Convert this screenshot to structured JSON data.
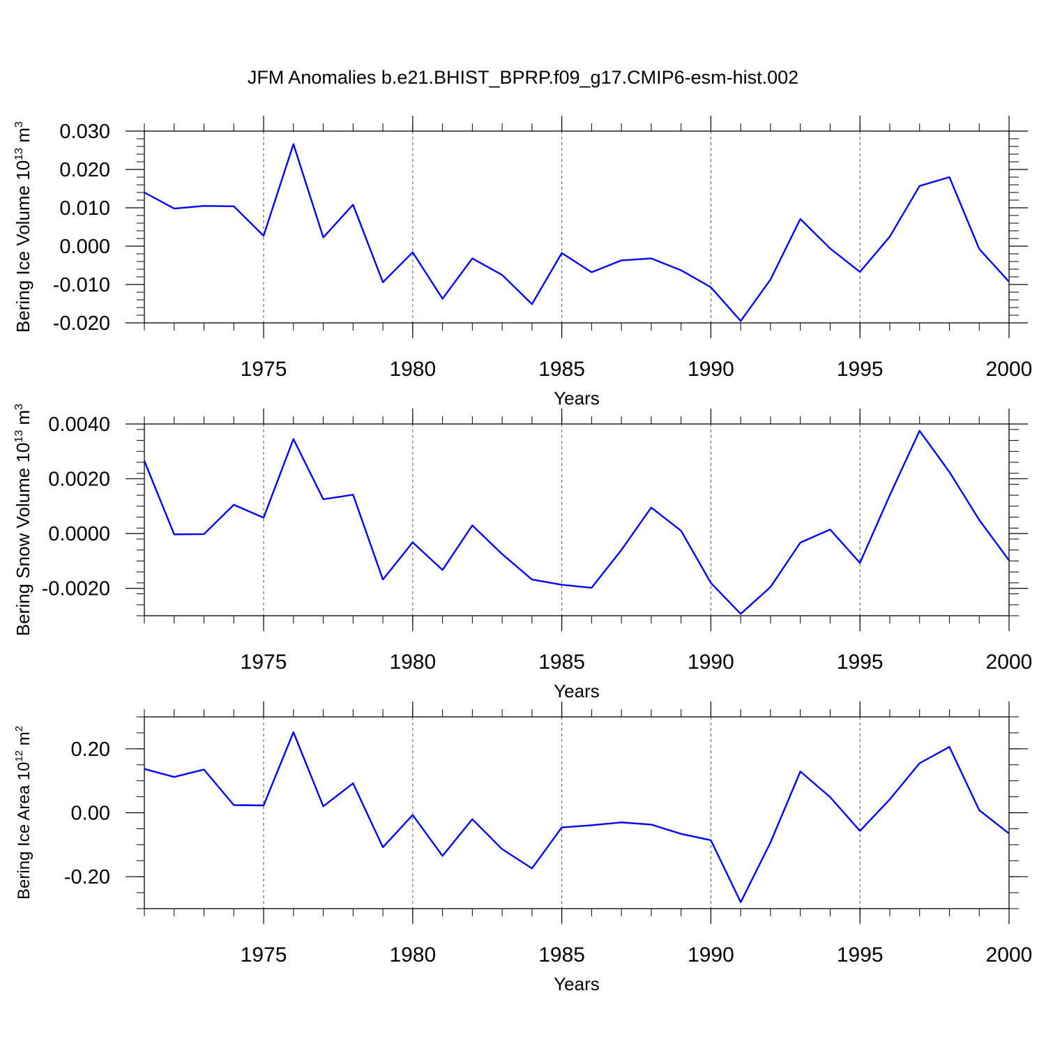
{
  "title": "JFM Anomalies b.e21.BHIST_BPRP.f09_g17.CMIP6-esm-hist.002",
  "colors": {
    "line": "#0000ff",
    "axis": "#000000",
    "grid": "#555555"
  },
  "chart_data": [
    {
      "type": "line",
      "xlabel": "Years",
      "ylabel": {
        "text": "Bering Ice Volume 10",
        "sup": "13",
        "unit": " m",
        "unit_sup": "3"
      },
      "xlim": [
        1971,
        2000
      ],
      "ylim": [
        -0.02,
        0.03
      ],
      "grid": "vertical dashed lines at major x ticks",
      "x_ticks": [
        1975,
        1980,
        1985,
        1990,
        1995,
        2000
      ],
      "y_ticks": [
        -0.02,
        -0.01,
        0.0,
        0.01,
        0.02,
        0.03
      ],
      "y_tick_labels": [
        "-0.020",
        "-0.010",
        "0.000",
        "0.010",
        "0.020",
        "0.030"
      ],
      "x": [
        1971,
        1972,
        1973,
        1974,
        1975,
        1976,
        1977,
        1978,
        1979,
        1980,
        1981,
        1982,
        1983,
        1984,
        1985,
        1986,
        1987,
        1988,
        1989,
        1990,
        1991,
        1992,
        1993,
        1994,
        1995,
        1996,
        1997,
        1998,
        1999,
        2000
      ],
      "values": [
        0.014,
        0.0098,
        0.0105,
        0.0104,
        0.0027,
        0.0266,
        0.0023,
        0.0108,
        -0.0094,
        -0.0016,
        -0.0137,
        -0.0032,
        -0.0075,
        -0.0151,
        -0.0018,
        -0.0068,
        -0.0037,
        -0.0032,
        -0.0063,
        -0.0107,
        -0.0195,
        -0.0087,
        0.0071,
        -0.0006,
        -0.0067,
        0.0025,
        0.0157,
        0.018,
        -0.0007,
        -0.0093
      ]
    },
    {
      "type": "line",
      "xlabel": "Years",
      "ylabel": {
        "text": "Bering Snow Volume 10",
        "sup": "13",
        "unit": " m",
        "unit_sup": "3"
      },
      "xlim": [
        1971,
        2000
      ],
      "ylim": [
        -0.003,
        0.004
      ],
      "grid": "vertical dashed lines at major x ticks",
      "x_ticks": [
        1975,
        1980,
        1985,
        1990,
        1995,
        2000
      ],
      "y_ticks": [
        -0.002,
        0.0,
        0.002,
        0.004
      ],
      "y_tick_labels": [
        "-0.0020",
        "0.0000",
        "0.0020",
        "0.0040"
      ],
      "x": [
        1971,
        1972,
        1973,
        1974,
        1975,
        1976,
        1977,
        1978,
        1979,
        1980,
        1981,
        1982,
        1983,
        1984,
        1985,
        1986,
        1987,
        1988,
        1989,
        1990,
        1991,
        1992,
        1993,
        1994,
        1995,
        1996,
        1997,
        1998,
        1999,
        2000
      ],
      "values": [
        0.00265,
        -3e-05,
        -2e-05,
        0.00105,
        0.00058,
        0.00345,
        0.00125,
        0.00142,
        -0.00168,
        -0.00032,
        -0.00133,
        0.0003,
        -0.00075,
        -0.00168,
        -0.00187,
        -0.00198,
        -0.0006,
        0.00095,
        0.0001,
        -0.0018,
        -0.00293,
        -0.00195,
        -0.00033,
        0.00015,
        -0.00107,
        0.0014,
        0.00375,
        0.00225,
        0.0005,
        -0.00098
      ]
    },
    {
      "type": "line",
      "xlabel": "Years",
      "ylabel": {
        "text": "Bering Ice Area 10",
        "sup": "12",
        "unit": " m",
        "unit_sup": "2"
      },
      "xlim": [
        1971,
        2000
      ],
      "ylim": [
        -0.3,
        0.3
      ],
      "grid": "vertical dashed lines at major x ticks",
      "x_ticks": [
        1975,
        1980,
        1985,
        1990,
        1995,
        2000
      ],
      "y_ticks": [
        -0.2,
        0.0,
        0.2
      ],
      "y_tick_labels": [
        "-0.20",
        "0.00",
        "0.20"
      ],
      "x": [
        1971,
        1972,
        1973,
        1974,
        1975,
        1976,
        1977,
        1978,
        1979,
        1980,
        1981,
        1982,
        1983,
        1984,
        1985,
        1986,
        1987,
        1988,
        1989,
        1990,
        1991,
        1992,
        1993,
        1994,
        1995,
        1996,
        1997,
        1998,
        1999,
        2000
      ],
      "values": [
        0.137,
        0.112,
        0.135,
        0.024,
        0.023,
        0.252,
        0.02,
        0.092,
        -0.108,
        -0.007,
        -0.135,
        -0.02,
        -0.114,
        -0.174,
        -0.046,
        -0.039,
        -0.03,
        -0.037,
        -0.066,
        -0.086,
        -0.28,
        -0.093,
        0.129,
        0.049,
        -0.057,
        0.042,
        0.155,
        0.206,
        0.008,
        -0.065
      ]
    }
  ]
}
